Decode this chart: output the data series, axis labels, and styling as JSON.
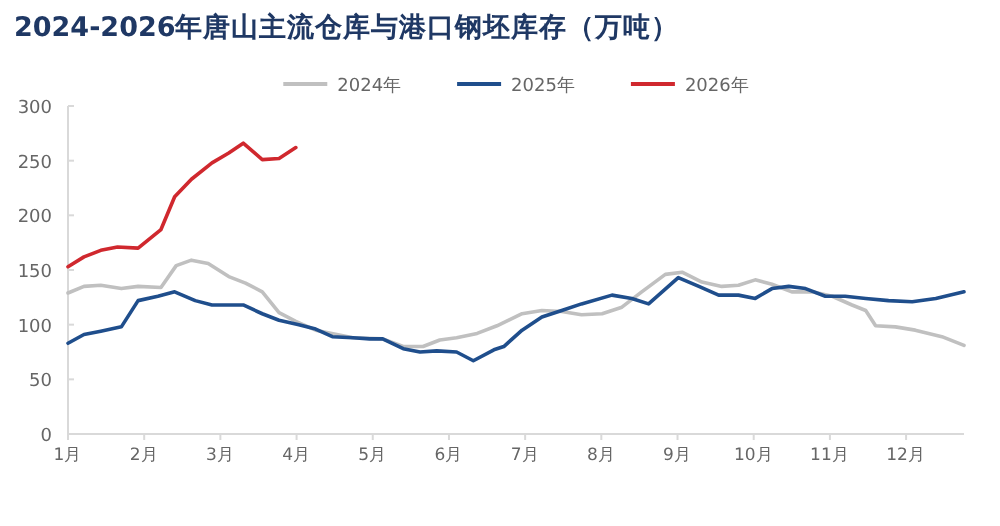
{
  "chart_data": {
    "type": "line",
    "title": "2024-2026年唐山主流仓库与港口钢坯库存（万吨）",
    "legend": "top",
    "grid": false,
    "marker": "none",
    "line_style": "solid",
    "xlim": [
      1,
      12.76
    ],
    "xticks": [
      {
        "value": 1,
        "label": "1月"
      },
      {
        "value": 2,
        "label": "2月"
      },
      {
        "value": 3,
        "label": "3月"
      },
      {
        "value": 4,
        "label": "4月"
      },
      {
        "value": 5,
        "label": "5月"
      },
      {
        "value": 6,
        "label": "6月"
      },
      {
        "value": 7,
        "label": "7月"
      },
      {
        "value": 8,
        "label": "8月"
      },
      {
        "value": 9,
        "label": "9月"
      },
      {
        "value": 10,
        "label": "10月"
      },
      {
        "value": 11,
        "label": "11月"
      },
      {
        "value": 12,
        "label": "12月"
      }
    ],
    "ylim": [
      0,
      300
    ],
    "yticks": [
      0,
      50,
      100,
      150,
      200,
      250,
      300
    ],
    "series": [
      {
        "name": "2024年",
        "color": "#c0c0c0",
        "x": [
          1.0,
          1.21,
          1.43,
          1.7,
          1.92,
          2.22,
          2.42,
          2.62,
          2.84,
          3.11,
          3.33,
          3.55,
          3.77,
          3.99,
          4.25,
          4.74,
          5.13,
          5.4,
          5.66,
          5.88,
          6.1,
          6.37,
          6.63,
          6.96,
          7.22,
          7.48,
          7.74,
          8.01,
          8.27,
          8.53,
          8.84,
          9.06,
          9.32,
          9.58,
          9.8,
          10.02,
          10.24,
          10.5,
          10.77,
          11.03,
          11.29,
          11.47,
          11.6,
          11.86,
          12.12,
          12.47,
          12.76
        ],
        "values": [
          129,
          135,
          136,
          133,
          135,
          134,
          154,
          159,
          156,
          144,
          138,
          130,
          111,
          103,
          95,
          88,
          87,
          80,
          80,
          86,
          88,
          92,
          99,
          110,
          113,
          112,
          109,
          110,
          116,
          130,
          146,
          148,
          139,
          135,
          136,
          141,
          137,
          130,
          130,
          126,
          118,
          113,
          99,
          98,
          95,
          89,
          81
        ]
      },
      {
        "name": "2025年",
        "color": "#1f4e8c",
        "x": [
          1.0,
          1.21,
          1.43,
          1.7,
          1.92,
          2.18,
          2.4,
          2.67,
          2.89,
          3.11,
          3.3,
          3.55,
          3.77,
          4.03,
          4.25,
          4.47,
          4.74,
          4.96,
          5.13,
          5.4,
          5.62,
          5.84,
          6.1,
          6.32,
          6.59,
          6.72,
          6.96,
          7.22,
          7.48,
          7.74,
          8.14,
          8.4,
          8.62,
          9.01,
          9.28,
          9.54,
          9.8,
          10.02,
          10.24,
          10.46,
          10.68,
          10.94,
          11.2,
          11.47,
          11.77,
          12.08,
          12.39,
          12.76
        ],
        "values": [
          83,
          91,
          94,
          98,
          122,
          126,
          130,
          122,
          118,
          118,
          118,
          110,
          104,
          100,
          96,
          89,
          88,
          87,
          87,
          78,
          75,
          76,
          75,
          67,
          77,
          80,
          95,
          107,
          113,
          119,
          127,
          124,
          119,
          143,
          135,
          127,
          127,
          124,
          133,
          135,
          133,
          126,
          126,
          124,
          122,
          121,
          124,
          130
        ]
      },
      {
        "name": "2026年",
        "color": "#d0282e",
        "x": [
          1.0,
          1.21,
          1.43,
          1.65,
          1.92,
          2.22,
          2.4,
          2.62,
          2.89,
          3.11,
          3.3,
          3.55,
          3.77,
          3.99
        ],
        "values": [
          153,
          162,
          168,
          171,
          170,
          187,
          217,
          233,
          248,
          257,
          266,
          251,
          252,
          262
        ]
      }
    ]
  }
}
